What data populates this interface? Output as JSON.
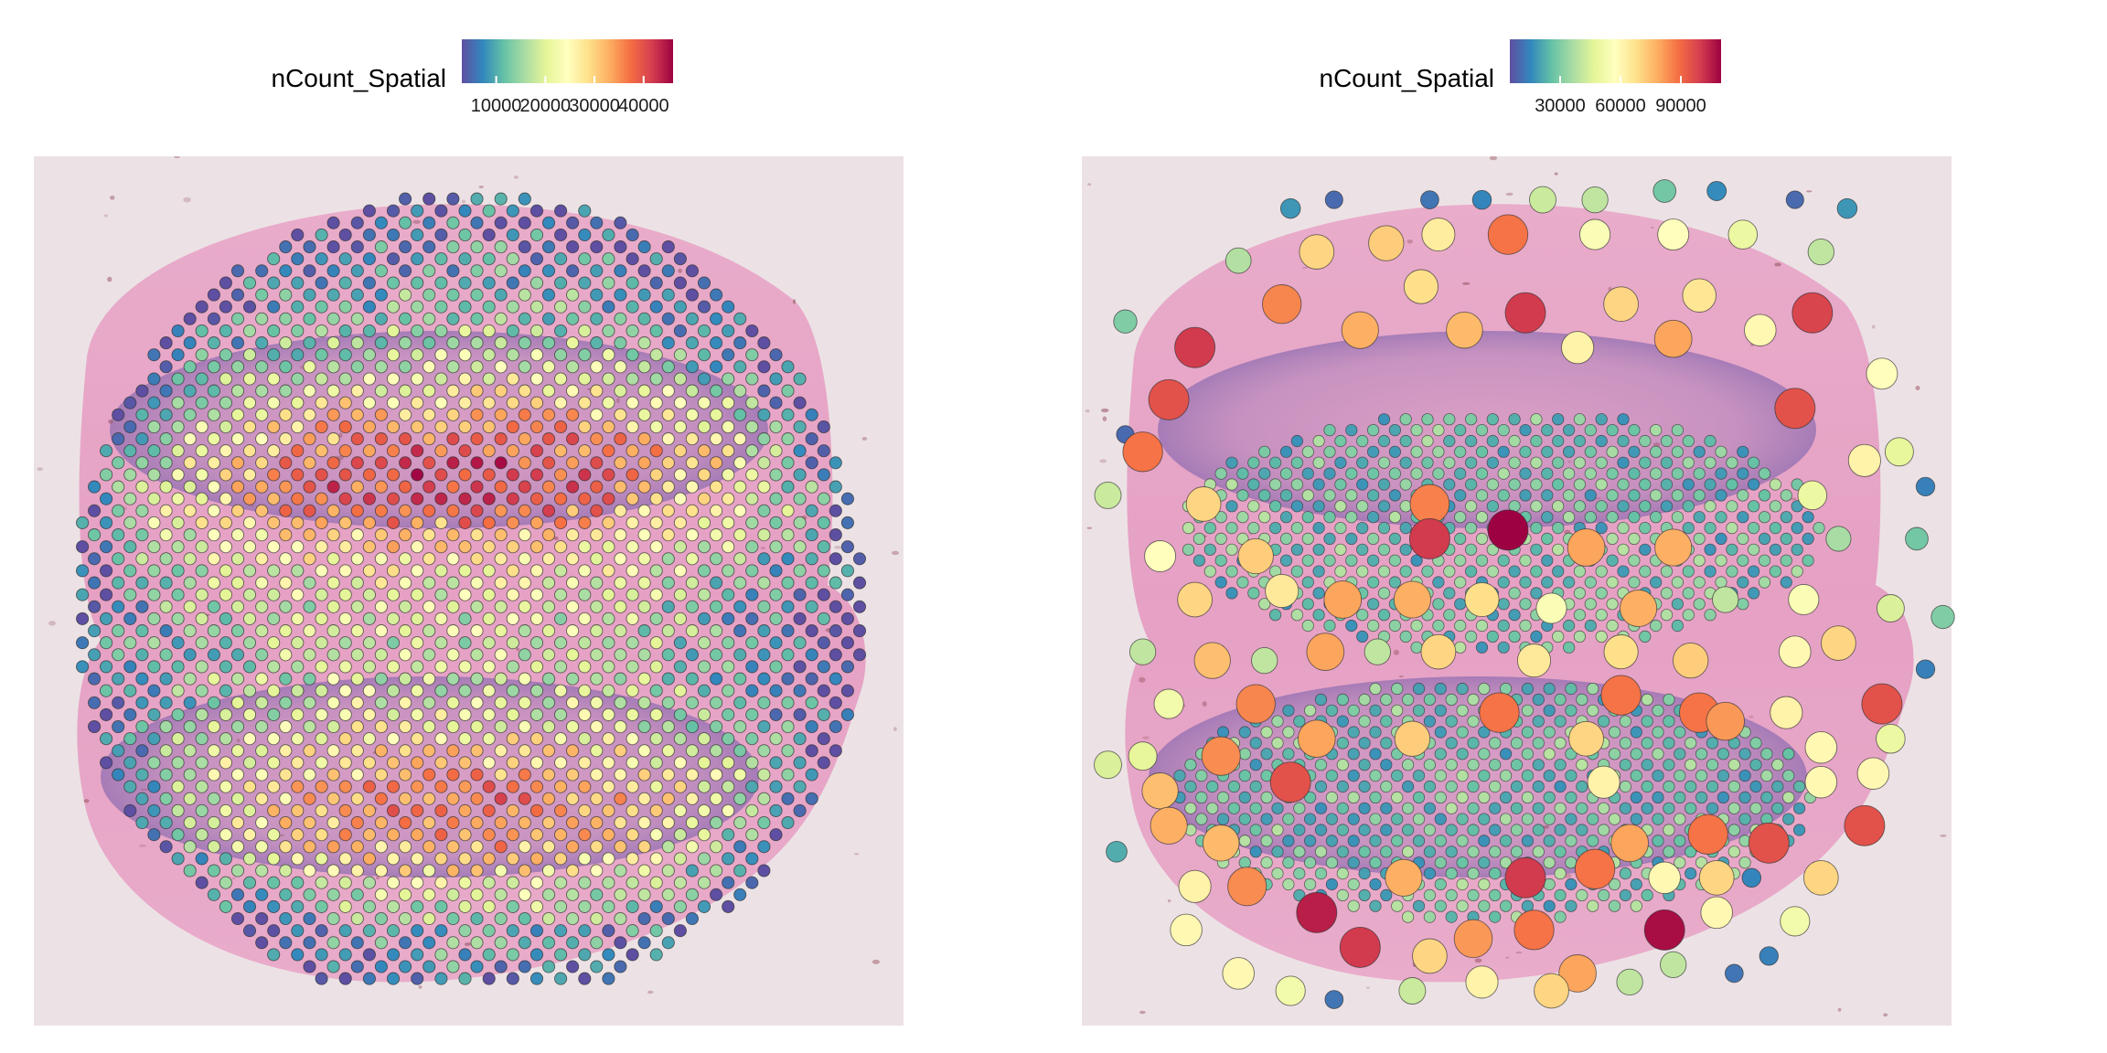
{
  "figure_title": "",
  "colormap": [
    "#5e4fa2",
    "#3288bd",
    "#66c2a5",
    "#abdda4",
    "#e6f598",
    "#ffffbf",
    "#fee08b",
    "#fdae61",
    "#f46d43",
    "#d53e4f",
    "#9e0142"
  ],
  "tissue_colors": {
    "background": "#ece2e4",
    "tissue": "#e8a6c8",
    "nuclei": "#7b6aa8"
  },
  "chart_data": [
    {
      "type": "scatter",
      "name": "spatial-feature-plot-left",
      "title": "",
      "legend": {
        "title": "nCount_Spatial",
        "ticks": [
          "10000",
          "20000",
          "30000",
          "40000"
        ],
        "placement": "top"
      },
      "color_range": [
        3000,
        46000
      ],
      "xlim": [
        0,
        100
      ],
      "ylim": [
        0,
        100
      ],
      "spot_layout": "uniform hexagonal grid of equal-size spots",
      "value_pattern": "high counts (up to ~46000) in the two horizontal tissue cores (centered y≈36 and y≈77); low counts (~3000-8000) at the rim and the upper-right edge",
      "points": [],
      "notes": "points array is filled in from the visible grid: x,y in plot units (0-100), value = nCount_Spatial"
    },
    {
      "type": "scatter",
      "name": "spatial-feature-plot-right",
      "title": "",
      "legend": {
        "title": "nCount_Spatial",
        "ticks": [
          "30000",
          "60000",
          "90000"
        ],
        "placement": "top"
      },
      "color_range": [
        5000,
        110000
      ],
      "size_encodes": "region resolution (small spots in dense cores, large spots in the periphery)",
      "xlim": [
        0,
        100
      ],
      "ylim": [
        0,
        100
      ],
      "points": [
        {
          "x": 24,
          "y": 6,
          "v": 18000
        },
        {
          "x": 29,
          "y": 5,
          "v": 10000
        },
        {
          "x": 40,
          "y": 5,
          "v": 12000
        },
        {
          "x": 46,
          "y": 5,
          "v": 15000
        },
        {
          "x": 53,
          "y": 5,
          "v": 42000
        },
        {
          "x": 59,
          "y": 5,
          "v": 40000
        },
        {
          "x": 67,
          "y": 4,
          "v": 28000
        },
        {
          "x": 73,
          "y": 4,
          "v": 16000
        },
        {
          "x": 82,
          "y": 5,
          "v": 10000
        },
        {
          "x": 88,
          "y": 6,
          "v": 18000
        },
        {
          "x": 18,
          "y": 12,
          "v": 38000
        },
        {
          "x": 27,
          "y": 11,
          "v": 70000
        },
        {
          "x": 35,
          "y": 10,
          "v": 72000
        },
        {
          "x": 41,
          "y": 9,
          "v": 64000
        },
        {
          "x": 49,
          "y": 9,
          "v": 88000
        },
        {
          "x": 59,
          "y": 9,
          "v": 55000
        },
        {
          "x": 68,
          "y": 9,
          "v": 58000
        },
        {
          "x": 76,
          "y": 9,
          "v": 50000
        },
        {
          "x": 85,
          "y": 11,
          "v": 40000
        },
        {
          "x": 23,
          "y": 17,
          "v": 85000
        },
        {
          "x": 39,
          "y": 15,
          "v": 68000
        },
        {
          "x": 51,
          "y": 18,
          "v": 100000
        },
        {
          "x": 62,
          "y": 17,
          "v": 70000
        },
        {
          "x": 71,
          "y": 16,
          "v": 66000
        },
        {
          "x": 84,
          "y": 18,
          "v": 98000
        },
        {
          "x": 5,
          "y": 19,
          "v": 30000
        },
        {
          "x": 13,
          "y": 22,
          "v": 100000
        },
        {
          "x": 32,
          "y": 20,
          "v": 78000
        },
        {
          "x": 44,
          "y": 20,
          "v": 76000
        },
        {
          "x": 57,
          "y": 22,
          "v": 62000
        },
        {
          "x": 68,
          "y": 21,
          "v": 80000
        },
        {
          "x": 78,
          "y": 20,
          "v": 60000
        },
        {
          "x": 92,
          "y": 25,
          "v": 58000
        },
        {
          "x": 10,
          "y": 28,
          "v": 95000
        },
        {
          "x": 5,
          "y": 32,
          "v": 10000
        },
        {
          "x": 7,
          "y": 34,
          "v": 88000
        },
        {
          "x": 82,
          "y": 29,
          "v": 95000
        },
        {
          "x": 94,
          "y": 34,
          "v": 48000
        },
        {
          "x": 3,
          "y": 39,
          "v": 42000
        },
        {
          "x": 14,
          "y": 40,
          "v": 70000
        },
        {
          "x": 40,
          "y": 40,
          "v": 86000
        },
        {
          "x": 84,
          "y": 39,
          "v": 50000
        },
        {
          "x": 90,
          "y": 35,
          "v": 62000
        },
        {
          "x": 97,
          "y": 38,
          "v": 14000
        },
        {
          "x": 9,
          "y": 46,
          "v": 58000
        },
        {
          "x": 20,
          "y": 46,
          "v": 72000
        },
        {
          "x": 40,
          "y": 44,
          "v": 100000
        },
        {
          "x": 49,
          "y": 43,
          "v": 110000
        },
        {
          "x": 58,
          "y": 45,
          "v": 80000
        },
        {
          "x": 68,
          "y": 45,
          "v": 78000
        },
        {
          "x": 87,
          "y": 44,
          "v": 36000
        },
        {
          "x": 96,
          "y": 44,
          "v": 28000
        },
        {
          "x": 13,
          "y": 51,
          "v": 70000
        },
        {
          "x": 23,
          "y": 50,
          "v": 65000
        },
        {
          "x": 30,
          "y": 51,
          "v": 80000
        },
        {
          "x": 38,
          "y": 51,
          "v": 78000
        },
        {
          "x": 46,
          "y": 51,
          "v": 68000
        },
        {
          "x": 54,
          "y": 52,
          "v": 55000
        },
        {
          "x": 64,
          "y": 52,
          "v": 78000
        },
        {
          "x": 74,
          "y": 51,
          "v": 40000
        },
        {
          "x": 83,
          "y": 51,
          "v": 55000
        },
        {
          "x": 93,
          "y": 52,
          "v": 45000
        },
        {
          "x": 99,
          "y": 53,
          "v": 30000
        },
        {
          "x": 7,
          "y": 57,
          "v": 40000
        },
        {
          "x": 15,
          "y": 58,
          "v": 75000
        },
        {
          "x": 21,
          "y": 58,
          "v": 40000
        },
        {
          "x": 28,
          "y": 57,
          "v": 80000
        },
        {
          "x": 34,
          "y": 57,
          "v": 40000
        },
        {
          "x": 41,
          "y": 57,
          "v": 70000
        },
        {
          "x": 52,
          "y": 58,
          "v": 65000
        },
        {
          "x": 62,
          "y": 57,
          "v": 68000
        },
        {
          "x": 70,
          "y": 58,
          "v": 72000
        },
        {
          "x": 82,
          "y": 57,
          "v": 60000
        },
        {
          "x": 87,
          "y": 56,
          "v": 70000
        },
        {
          "x": 97,
          "y": 59,
          "v": 14000
        },
        {
          "x": 10,
          "y": 63,
          "v": 52000
        },
        {
          "x": 20,
          "y": 63,
          "v": 85000
        },
        {
          "x": 48,
          "y": 64,
          "v": 88000
        },
        {
          "x": 62,
          "y": 62,
          "v": 88000
        },
        {
          "x": 71,
          "y": 64,
          "v": 88000
        },
        {
          "x": 81,
          "y": 64,
          "v": 62000
        },
        {
          "x": 92,
          "y": 63,
          "v": 95000
        },
        {
          "x": 7,
          "y": 69,
          "v": 48000
        },
        {
          "x": 16,
          "y": 69,
          "v": 84000
        },
        {
          "x": 27,
          "y": 67,
          "v": 80000
        },
        {
          "x": 38,
          "y": 67,
          "v": 72000
        },
        {
          "x": 58,
          "y": 67,
          "v": 70000
        },
        {
          "x": 74,
          "y": 65,
          "v": 82000
        },
        {
          "x": 85,
          "y": 68,
          "v": 60000
        },
        {
          "x": 93,
          "y": 67,
          "v": 50000
        },
        {
          "x": 3,
          "y": 70,
          "v": 45000
        },
        {
          "x": 9,
          "y": 73,
          "v": 75000
        },
        {
          "x": 24,
          "y": 72,
          "v": 95000
        },
        {
          "x": 60,
          "y": 72,
          "v": 62000
        },
        {
          "x": 85,
          "y": 72,
          "v": 60000
        },
        {
          "x": 91,
          "y": 71,
          "v": 60000
        },
        {
          "x": 10,
          "y": 77,
          "v": 78000
        },
        {
          "x": 16,
          "y": 79,
          "v": 76000
        },
        {
          "x": 63,
          "y": 79,
          "v": 80000
        },
        {
          "x": 72,
          "y": 78,
          "v": 88000
        },
        {
          "x": 79,
          "y": 79,
          "v": 95000
        },
        {
          "x": 4,
          "y": 80,
          "v": 22000
        },
        {
          "x": 13,
          "y": 84,
          "v": 62000
        },
        {
          "x": 19,
          "y": 84,
          "v": 84000
        },
        {
          "x": 37,
          "y": 83,
          "v": 78000
        },
        {
          "x": 51,
          "y": 83,
          "v": 100000
        },
        {
          "x": 59,
          "y": 82,
          "v": 88000
        },
        {
          "x": 67,
          "y": 83,
          "v": 60000
        },
        {
          "x": 73,
          "y": 83,
          "v": 70000
        },
        {
          "x": 85,
          "y": 83,
          "v": 70000
        },
        {
          "x": 90,
          "y": 77,
          "v": 95000
        },
        {
          "x": 77,
          "y": 83,
          "v": 15000
        },
        {
          "x": 12,
          "y": 89,
          "v": 60000
        },
        {
          "x": 27,
          "y": 87,
          "v": 105000
        },
        {
          "x": 45,
          "y": 90,
          "v": 82000
        },
        {
          "x": 52,
          "y": 89,
          "v": 88000
        },
        {
          "x": 67,
          "y": 89,
          "v": 108000
        },
        {
          "x": 73,
          "y": 87,
          "v": 60000
        },
        {
          "x": 82,
          "y": 88,
          "v": 52000
        },
        {
          "x": 18,
          "y": 94,
          "v": 60000
        },
        {
          "x": 24,
          "y": 96,
          "v": 52000
        },
        {
          "x": 32,
          "y": 91,
          "v": 100000
        },
        {
          "x": 40,
          "y": 92,
          "v": 70000
        },
        {
          "x": 57,
          "y": 94,
          "v": 80000
        },
        {
          "x": 68,
          "y": 93,
          "v": 40000
        },
        {
          "x": 79,
          "y": 92,
          "v": 14000
        },
        {
          "x": 29,
          "y": 97,
          "v": 12000
        },
        {
          "x": 38,
          "y": 96,
          "v": 42000
        },
        {
          "x": 46,
          "y": 95,
          "v": 62000
        },
        {
          "x": 54,
          "y": 96,
          "v": 70000
        },
        {
          "x": 63,
          "y": 95,
          "v": 40000
        },
        {
          "x": 75,
          "y": 94,
          "v": 12000
        }
      ]
    }
  ]
}
